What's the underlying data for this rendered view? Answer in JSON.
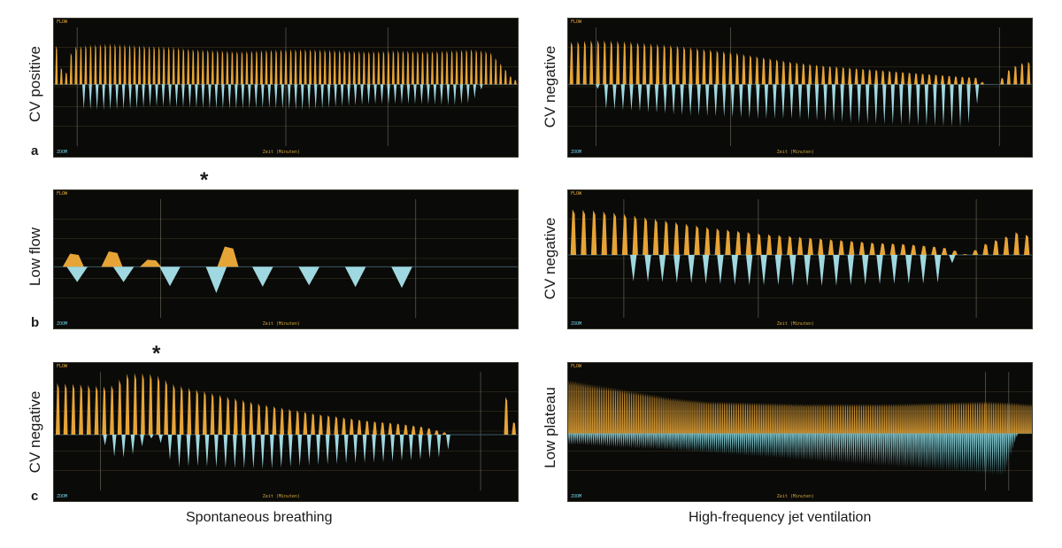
{
  "columns": {
    "left_title": "Spontaneous breathing",
    "right_title": "High-frequency jet ventilation"
  },
  "panel_text": {
    "flow_tag": "FLOW",
    "zoom_tag": "ZOOM",
    "axis_tag": "Zeit (Minuten)"
  },
  "colors": {
    "positive": "#f2ad3a",
    "negative": "#a8e4ec",
    "background": "#0a0a08",
    "grid": "#4a4228"
  },
  "chart_data": [
    {
      "type": "area",
      "row": "a",
      "column": "left",
      "ylabel": "CV positive",
      "row_letter": "a",
      "asterisk": "",
      "baseline": 0.52,
      "pos": [
        [
          0.01,
          0.68
        ],
        [
          0.02,
          0.0
        ],
        [
          0.04,
          0.66
        ],
        [
          0.08,
          0.7
        ],
        [
          0.12,
          0.72
        ],
        [
          0.16,
          0.7
        ],
        [
          0.2,
          0.68
        ],
        [
          0.26,
          0.66
        ],
        [
          0.3,
          0.62
        ],
        [
          0.36,
          0.6
        ],
        [
          0.4,
          0.58
        ],
        [
          0.44,
          0.6
        ],
        [
          0.5,
          0.62
        ],
        [
          0.56,
          0.62
        ],
        [
          0.62,
          0.6
        ],
        [
          0.68,
          0.58
        ],
        [
          0.74,
          0.6
        ],
        [
          0.8,
          0.58
        ],
        [
          0.86,
          0.6
        ],
        [
          0.9,
          0.62
        ],
        [
          0.94,
          0.58
        ],
        [
          0.97,
          0.3
        ],
        [
          0.99,
          0.08
        ]
      ],
      "neg": [
        [
          0.05,
          0.0
        ],
        [
          0.06,
          0.4
        ],
        [
          0.1,
          0.42
        ],
        [
          0.16,
          0.4
        ],
        [
          0.22,
          0.36
        ],
        [
          0.3,
          0.38
        ],
        [
          0.38,
          0.4
        ],
        [
          0.46,
          0.38
        ],
        [
          0.54,
          0.42
        ],
        [
          0.62,
          0.36
        ],
        [
          0.7,
          0.32
        ],
        [
          0.78,
          0.32
        ],
        [
          0.86,
          0.34
        ],
        [
          0.9,
          0.3
        ],
        [
          0.93,
          0.0
        ]
      ],
      "pos_density": 95,
      "neg_density": 70,
      "vlines": [
        0.05,
        0.5,
        0.72
      ]
    },
    {
      "type": "area",
      "row": "a",
      "column": "right",
      "ylabel": "CV negative",
      "row_letter": "",
      "asterisk": "",
      "baseline": 0.52,
      "pos": [
        [
          0.01,
          0.75
        ],
        [
          0.06,
          0.78
        ],
        [
          0.12,
          0.76
        ],
        [
          0.18,
          0.72
        ],
        [
          0.24,
          0.68
        ],
        [
          0.3,
          0.62
        ],
        [
          0.36,
          0.56
        ],
        [
          0.42,
          0.48
        ],
        [
          0.48,
          0.4
        ],
        [
          0.54,
          0.34
        ],
        [
          0.6,
          0.3
        ],
        [
          0.66,
          0.26
        ],
        [
          0.72,
          0.22
        ],
        [
          0.78,
          0.18
        ],
        [
          0.84,
          0.14
        ],
        [
          0.88,
          0.12
        ],
        [
          0.9,
          0.0
        ],
        [
          0.93,
          0.0
        ],
        [
          0.94,
          0.2
        ],
        [
          0.97,
          0.36
        ],
        [
          0.99,
          0.4
        ]
      ],
      "neg": [
        [
          0.06,
          0.0
        ],
        [
          0.08,
          0.4
        ],
        [
          0.16,
          0.44
        ],
        [
          0.24,
          0.5
        ],
        [
          0.32,
          0.52
        ],
        [
          0.4,
          0.56
        ],
        [
          0.48,
          0.56
        ],
        [
          0.56,
          0.6
        ],
        [
          0.64,
          0.64
        ],
        [
          0.72,
          0.66
        ],
        [
          0.8,
          0.68
        ],
        [
          0.86,
          0.7
        ],
        [
          0.9,
          0.0
        ]
      ],
      "pos_density": 70,
      "neg_density": 55,
      "vlines": [
        0.06,
        0.35,
        0.93
      ]
    },
    {
      "type": "area",
      "row": "b",
      "column": "left",
      "ylabel": "Low flow",
      "row_letter": "b",
      "asterisk": "*",
      "baseline": 0.43,
      "pos": [
        [
          0.01,
          0.55
        ],
        [
          0.04,
          0.18
        ],
        [
          0.08,
          0.55
        ],
        [
          0.12,
          0.18
        ],
        [
          0.16,
          0.56
        ],
        [
          0.2,
          0.18
        ],
        [
          0.22,
          0.0
        ],
        [
          0.3,
          0.0
        ],
        [
          0.31,
          0.98
        ],
        [
          0.34,
          0.98
        ],
        [
          0.35,
          0.0
        ],
        [
          0.37,
          0.4
        ],
        [
          0.39,
          0.0
        ],
        [
          0.98,
          0.0
        ],
        [
          0.99,
          0.9
        ]
      ],
      "neg": [
        [
          0.23,
          0.3
        ],
        [
          0.3,
          0.58
        ],
        [
          0.36,
          0.5
        ],
        [
          0.42,
          0.4
        ],
        [
          0.48,
          0.38
        ],
        [
          0.54,
          0.36
        ],
        [
          0.6,
          0.38
        ],
        [
          0.66,
          0.4
        ],
        [
          0.72,
          0.4
        ],
        [
          0.76,
          0.42
        ],
        [
          0.78,
          0.0
        ]
      ],
      "pos_density": 12,
      "neg_density": 10,
      "vlines": [
        0.23,
        0.78
      ]
    },
    {
      "type": "area",
      "row": "b",
      "column": "right",
      "ylabel": "CV negative",
      "row_letter": "",
      "asterisk": "",
      "baseline": 0.53,
      "pos": [
        [
          0.01,
          0.82
        ],
        [
          0.06,
          0.8
        ],
        [
          0.12,
          0.74
        ],
        [
          0.18,
          0.66
        ],
        [
          0.24,
          0.58
        ],
        [
          0.3,
          0.5
        ],
        [
          0.36,
          0.44
        ],
        [
          0.42,
          0.38
        ],
        [
          0.48,
          0.34
        ],
        [
          0.54,
          0.3
        ],
        [
          0.6,
          0.26
        ],
        [
          0.66,
          0.22
        ],
        [
          0.72,
          0.2
        ],
        [
          0.78,
          0.16
        ],
        [
          0.82,
          0.12
        ],
        [
          0.86,
          0.0
        ],
        [
          0.9,
          0.2
        ],
        [
          0.94,
          0.32
        ],
        [
          0.97,
          0.42
        ],
        [
          0.99,
          0.36
        ]
      ],
      "neg": [
        [
          0.12,
          0.0
        ],
        [
          0.14,
          0.42
        ],
        [
          0.22,
          0.44
        ],
        [
          0.3,
          0.46
        ],
        [
          0.38,
          0.48
        ],
        [
          0.46,
          0.48
        ],
        [
          0.54,
          0.5
        ],
        [
          0.62,
          0.48
        ],
        [
          0.7,
          0.46
        ],
        [
          0.76,
          0.46
        ],
        [
          0.8,
          0.44
        ],
        [
          0.84,
          0.0
        ]
      ],
      "pos_density": 45,
      "neg_density": 32,
      "vlines": [
        0.12,
        0.41,
        0.88
      ]
    },
    {
      "type": "area",
      "row": "c",
      "column": "left",
      "ylabel": "CV negative",
      "row_letter": "c",
      "asterisk": "*",
      "baseline": 0.47,
      "pos": [
        [
          0.01,
          0.82
        ],
        [
          0.06,
          0.8
        ],
        [
          0.12,
          0.76
        ],
        [
          0.16,
          0.98
        ],
        [
          0.2,
          0.98
        ],
        [
          0.22,
          0.96
        ],
        [
          0.26,
          0.8
        ],
        [
          0.32,
          0.7
        ],
        [
          0.38,
          0.6
        ],
        [
          0.44,
          0.5
        ],
        [
          0.5,
          0.42
        ],
        [
          0.56,
          0.34
        ],
        [
          0.62,
          0.28
        ],
        [
          0.68,
          0.22
        ],
        [
          0.74,
          0.18
        ],
        [
          0.8,
          0.12
        ],
        [
          0.86,
          0.0
        ],
        [
          0.96,
          0.0
        ],
        [
          0.98,
          0.8
        ],
        [
          0.99,
          0.2
        ]
      ],
      "neg": [
        [
          0.1,
          0.0
        ],
        [
          0.12,
          0.38
        ],
        [
          0.16,
          0.42
        ],
        [
          0.22,
          0.0
        ],
        [
          0.26,
          0.6
        ],
        [
          0.3,
          0.56
        ],
        [
          0.38,
          0.6
        ],
        [
          0.46,
          0.62
        ],
        [
          0.54,
          0.56
        ],
        [
          0.62,
          0.52
        ],
        [
          0.7,
          0.5
        ],
        [
          0.78,
          0.46
        ],
        [
          0.84,
          0.4
        ],
        [
          0.87,
          0.0
        ]
      ],
      "pos_density": 60,
      "neg_density": 50,
      "vlines": [
        0.1,
        0.92
      ]
    },
    {
      "type": "area",
      "row": "c",
      "column": "right",
      "ylabel": "Low plateau",
      "row_letter": "",
      "asterisk": "",
      "baseline": 0.48,
      "pos": [
        [
          0.01,
          0.86
        ],
        [
          0.05,
          0.8
        ],
        [
          0.1,
          0.74
        ],
        [
          0.16,
          0.66
        ],
        [
          0.22,
          0.58
        ],
        [
          0.3,
          0.52
        ],
        [
          0.4,
          0.5
        ],
        [
          0.5,
          0.48
        ],
        [
          0.6,
          0.48
        ],
        [
          0.7,
          0.48
        ],
        [
          0.8,
          0.5
        ],
        [
          0.9,
          0.52
        ],
        [
          0.96,
          0.5
        ],
        [
          0.99,
          0.48
        ]
      ],
      "neg": [
        [
          0.03,
          0.2
        ],
        [
          0.1,
          0.24
        ],
        [
          0.2,
          0.28
        ],
        [
          0.3,
          0.34
        ],
        [
          0.4,
          0.4
        ],
        [
          0.5,
          0.46
        ],
        [
          0.6,
          0.52
        ],
        [
          0.7,
          0.58
        ],
        [
          0.8,
          0.64
        ],
        [
          0.88,
          0.7
        ],
        [
          0.94,
          0.74
        ],
        [
          0.97,
          0.0
        ]
      ],
      "pos_density": 260,
      "neg_density": 230,
      "vlines": [
        0.9,
        0.95
      ]
    }
  ]
}
